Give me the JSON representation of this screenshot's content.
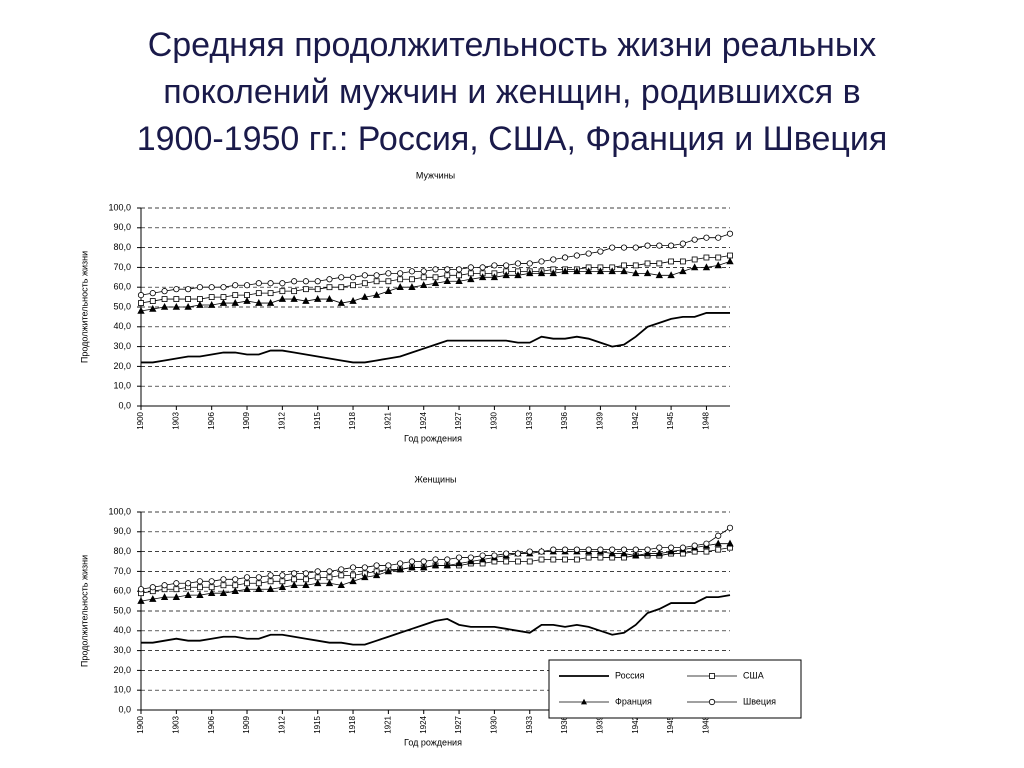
{
  "title": [
    "Средняя продолжительность жизни реальных",
    "поколений мужчин и женщин, родившихся в",
    "1900-1950 гг.: Россия, США, Франция и Швеция"
  ],
  "chart_data": [
    {
      "type": "line",
      "title": "Мужчины",
      "ylabel": "Продолжительность жизни",
      "xlabel": "Год рождения",
      "x": [
        1900,
        1901,
        1902,
        1903,
        1904,
        1905,
        1906,
        1907,
        1908,
        1909,
        1910,
        1911,
        1912,
        1913,
        1914,
        1915,
        1916,
        1917,
        1918,
        1919,
        1920,
        1921,
        1922,
        1923,
        1924,
        1925,
        1926,
        1927,
        1928,
        1929,
        1930,
        1931,
        1932,
        1933,
        1934,
        1935,
        1936,
        1937,
        1938,
        1939,
        1940,
        1941,
        1942,
        1943,
        1944,
        1945,
        1946,
        1947,
        1948,
        1949,
        1950
      ],
      "xlim": [
        1900,
        1950
      ],
      "xticks": [
        1900,
        1903,
        1906,
        1909,
        1912,
        1915,
        1918,
        1921,
        1924,
        1927,
        1930,
        1933,
        1936,
        1939,
        1942,
        1945,
        1948
      ],
      "ylim": [
        0,
        100
      ],
      "yticks": [
        {
          "value": 0,
          "label": "0,0"
        },
        {
          "value": 10,
          "label": "10,0"
        },
        {
          "value": 20,
          "label": "20,0"
        },
        {
          "value": 30,
          "label": "30,0"
        },
        {
          "value": 40,
          "label": "40,0"
        },
        {
          "value": 50,
          "label": "50,0"
        },
        {
          "value": 60,
          "label": "60,0"
        },
        {
          "value": 70,
          "label": "70,0"
        },
        {
          "value": 80,
          "label": "80,0"
        },
        {
          "value": 90,
          "label": "90,0"
        },
        {
          "value": 100,
          "label": "100,0"
        }
      ],
      "grid": true,
      "series": [
        {
          "name": "Россия",
          "color": "#000000",
          "marker": "none",
          "values": [
            22,
            22,
            23,
            24,
            25,
            25,
            26,
            27,
            27,
            26,
            26,
            28,
            28,
            27,
            26,
            25,
            24,
            23,
            22,
            22,
            23,
            24,
            25,
            27,
            29,
            31,
            33,
            33,
            33,
            33,
            33,
            33,
            32,
            32,
            35,
            34,
            34,
            35,
            34,
            32,
            30,
            31,
            35,
            40,
            42,
            44,
            45,
            45,
            47,
            47,
            47
          ]
        },
        {
          "name": "США",
          "color": "#000000",
          "marker": "square",
          "values": [
            52,
            53,
            54,
            54,
            54,
            54,
            55,
            55,
            56,
            56,
            57,
            57,
            58,
            58,
            59,
            59,
            60,
            60,
            61,
            62,
            63,
            63,
            64,
            64,
            65,
            65,
            66,
            66,
            67,
            67,
            67,
            68,
            68,
            68,
            68,
            69,
            69,
            69,
            70,
            70,
            70,
            71,
            71,
            72,
            72,
            73,
            73,
            74,
            75,
            75,
            76
          ]
        },
        {
          "name": "Франция",
          "color": "#000000",
          "marker": "triangle",
          "values": [
            48,
            49,
            50,
            50,
            50,
            51,
            51,
            52,
            52,
            53,
            52,
            52,
            54,
            54,
            53,
            54,
            54,
            52,
            53,
            55,
            56,
            58,
            60,
            60,
            61,
            62,
            63,
            63,
            64,
            65,
            65,
            66,
            66,
            67,
            67,
            67,
            68,
            68,
            68,
            68,
            68,
            68,
            67,
            67,
            66,
            66,
            68,
            70,
            70,
            71,
            73
          ]
        },
        {
          "name": "Швеция",
          "color": "#000000",
          "marker": "circle",
          "values": [
            56,
            57,
            58,
            59,
            59,
            60,
            60,
            60,
            61,
            61,
            62,
            62,
            62,
            63,
            63,
            63,
            64,
            65,
            65,
            66,
            66,
            67,
            67,
            68,
            68,
            69,
            69,
            69,
            70,
            70,
            71,
            71,
            72,
            72,
            73,
            74,
            75,
            76,
            77,
            78,
            80,
            80,
            80,
            81,
            81,
            81,
            82,
            84,
            85,
            85,
            87
          ]
        }
      ]
    },
    {
      "type": "line",
      "title": "Женщины",
      "ylabel": "Продолжительность жизни",
      "xlabel": "Год рождения",
      "x": [
        1900,
        1901,
        1902,
        1903,
        1904,
        1905,
        1906,
        1907,
        1908,
        1909,
        1910,
        1911,
        1912,
        1913,
        1914,
        1915,
        1916,
        1917,
        1918,
        1919,
        1920,
        1921,
        1922,
        1923,
        1924,
        1925,
        1926,
        1927,
        1928,
        1929,
        1930,
        1931,
        1932,
        1933,
        1934,
        1935,
        1936,
        1937,
        1938,
        1939,
        1940,
        1941,
        1942,
        1943,
        1944,
        1945,
        1946,
        1947,
        1948,
        1949,
        1950
      ],
      "xlim": [
        1900,
        1950
      ],
      "xticks": [
        1900,
        1903,
        1906,
        1909,
        1912,
        1915,
        1918,
        1921,
        1924,
        1927,
        1930,
        1933,
        1936,
        1939,
        1942,
        1945,
        1948
      ],
      "ylim": [
        0,
        100
      ],
      "yticks": [
        {
          "value": 0,
          "label": "0,0"
        },
        {
          "value": 10,
          "label": "10,0"
        },
        {
          "value": 20,
          "label": "20,0"
        },
        {
          "value": 30,
          "label": "30,0"
        },
        {
          "value": 40,
          "label": "40,0"
        },
        {
          "value": 50,
          "label": "50,0"
        },
        {
          "value": 60,
          "label": "60,0"
        },
        {
          "value": 70,
          "label": "70,0"
        },
        {
          "value": 80,
          "label": "80,0"
        },
        {
          "value": 90,
          "label": "90,0"
        },
        {
          "value": 100,
          "label": "100,0"
        }
      ],
      "grid": true,
      "legend": "lower right",
      "series": [
        {
          "name": "Россия",
          "color": "#000000",
          "marker": "none",
          "values": [
            34,
            34,
            35,
            36,
            35,
            35,
            36,
            37,
            37,
            36,
            36,
            38,
            38,
            37,
            36,
            35,
            34,
            34,
            33,
            33,
            35,
            37,
            39,
            41,
            43,
            45,
            46,
            43,
            42,
            42,
            42,
            41,
            40,
            39,
            43,
            43,
            42,
            43,
            42,
            40,
            38,
            39,
            43,
            49,
            51,
            54,
            54,
            54,
            57,
            57,
            58
          ]
        },
        {
          "name": "США",
          "color": "#000000",
          "marker": "square",
          "values": [
            59,
            60,
            61,
            61,
            62,
            62,
            62,
            63,
            63,
            64,
            64,
            65,
            65,
            66,
            66,
            67,
            67,
            68,
            68,
            69,
            70,
            71,
            71,
            72,
            72,
            73,
            73,
            73,
            74,
            74,
            75,
            75,
            75,
            75,
            76,
            76,
            76,
            76,
            77,
            77,
            77,
            77,
            78,
            78,
            78,
            79,
            79,
            80,
            80,
            81,
            82
          ]
        },
        {
          "name": "Франция",
          "color": "#000000",
          "marker": "triangle",
          "values": [
            55,
            56,
            57,
            57,
            58,
            58,
            59,
            59,
            60,
            61,
            61,
            61,
            62,
            63,
            63,
            64,
            64,
            63,
            65,
            67,
            68,
            70,
            71,
            72,
            72,
            73,
            73,
            74,
            75,
            76,
            77,
            78,
            79,
            79,
            80,
            80,
            80,
            80,
            80,
            80,
            79,
            79,
            78,
            79,
            79,
            80,
            81,
            82,
            83,
            84,
            84
          ]
        },
        {
          "name": "Швеция",
          "color": "#000000",
          "marker": "circle",
          "values": [
            61,
            62,
            63,
            64,
            64,
            65,
            65,
            66,
            66,
            67,
            67,
            68,
            68,
            69,
            69,
            70,
            70,
            71,
            72,
            72,
            73,
            73,
            74,
            75,
            75,
            76,
            76,
            77,
            77,
            78,
            78,
            79,
            79,
            80,
            80,
            81,
            81,
            81,
            81,
            81,
            81,
            81,
            81,
            81,
            82,
            82,
            82,
            83,
            84,
            88,
            92
          ]
        }
      ]
    }
  ]
}
